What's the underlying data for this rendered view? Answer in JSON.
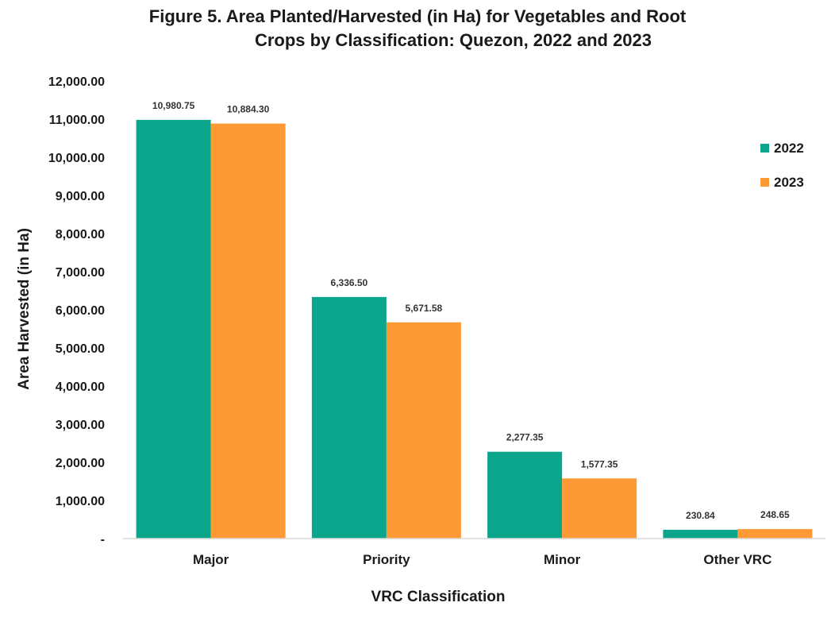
{
  "chart_data": {
    "type": "bar",
    "title_line1": "Figure 5. Area Planted/Harvested (in Ha) for Vegetables and Root",
    "title_line2": "Crops by Classification: Quezon, 2022 and 2023",
    "xlabel": "VRC Classification",
    "ylabel": "Area Harvested (in Ha)",
    "categories": [
      "Major",
      "Priority",
      "Minor",
      "Other VRC"
    ],
    "series": [
      {
        "name": "2022",
        "color": "#0aa58a",
        "values": [
          10980.75,
          6336.5,
          2277.35,
          230.84
        ],
        "labels": [
          "10,980.75",
          "6,336.50",
          "2,277.35",
          "230.84"
        ]
      },
      {
        "name": "2023",
        "color": "#fd9a35",
        "values": [
          10884.3,
          5671.58,
          1577.35,
          248.65
        ],
        "labels": [
          "10,884.30",
          "5,671.58",
          "1,577.35",
          "248.65"
        ]
      }
    ],
    "ylim": [
      0,
      12000
    ],
    "yticks": [
      0,
      1000,
      2000,
      3000,
      4000,
      5000,
      6000,
      7000,
      8000,
      9000,
      10000,
      11000,
      12000
    ],
    "ytick_labels": [
      "-",
      "1,000.00",
      "2,000.00",
      "3,000.00",
      "4,000.00",
      "5,000.00",
      "6,000.00",
      "7,000.00",
      "8,000.00",
      "9,000.00",
      "10,000.00",
      "11,000.00",
      "12,000.00"
    ],
    "grid": false,
    "legend_position": "right"
  }
}
